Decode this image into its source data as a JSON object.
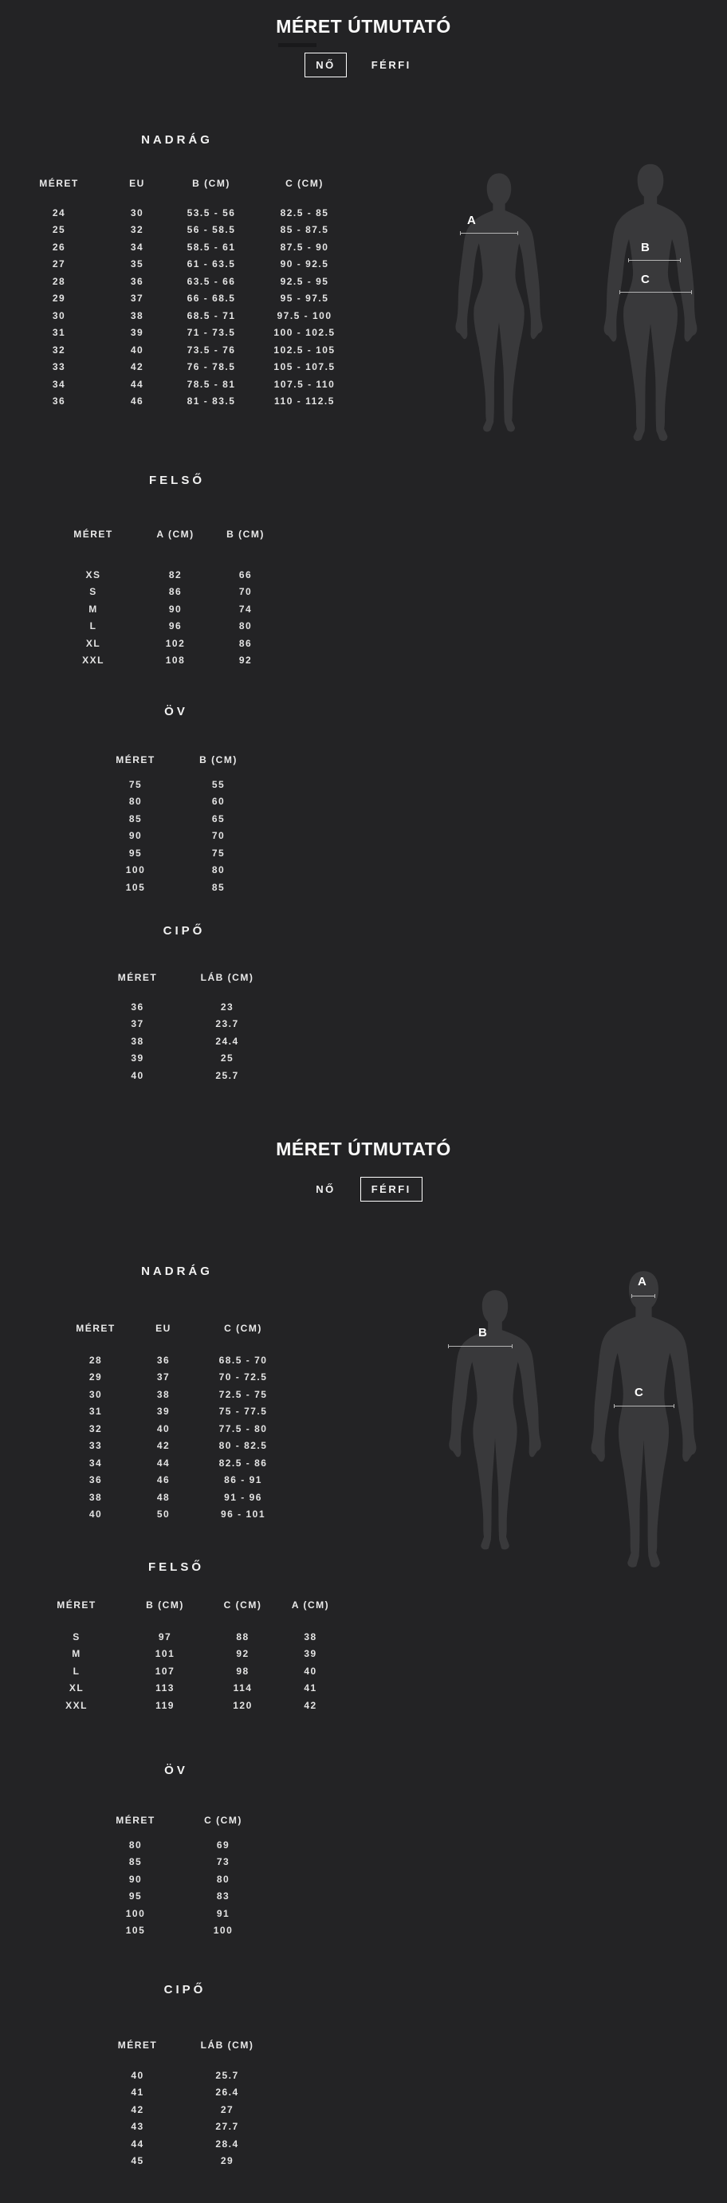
{
  "colors": {
    "background": "#232325",
    "silhouette": "#39393b",
    "text": "#efefef",
    "measure_line": "#b4b4b4",
    "active_tab_border": "#ffffff"
  },
  "sections": [
    {
      "id": "women",
      "title": "MÉRET ÚTMUTATÓ",
      "tabs": [
        {
          "label": "NŐ",
          "active": true
        },
        {
          "label": "FÉRFI",
          "active": false
        }
      ],
      "tables": [
        {
          "title": "NADRÁG",
          "headers": [
            "MÉRET",
            "EU",
            "B (CM)",
            "C (CM)"
          ],
          "rows": [
            [
              "24",
              "30",
              "53.5 - 56",
              "82.5 - 85"
            ],
            [
              "25",
              "32",
              "56 - 58.5",
              "85 - 87.5"
            ],
            [
              "26",
              "34",
              "58.5 - 61",
              "87.5 - 90"
            ],
            [
              "27",
              "35",
              "61 - 63.5",
              "90 - 92.5"
            ],
            [
              "28",
              "36",
              "63.5 - 66",
              "92.5 - 95"
            ],
            [
              "29",
              "37",
              "66 - 68.5",
              "95 - 97.5"
            ],
            [
              "30",
              "38",
              "68.5 - 71",
              "97.5 - 100"
            ],
            [
              "31",
              "39",
              "71 - 73.5",
              "100 - 102.5"
            ],
            [
              "32",
              "40",
              "73.5 - 76",
              "102.5 - 105"
            ],
            [
              "33",
              "42",
              "76 - 78.5",
              "105 - 107.5"
            ],
            [
              "34",
              "44",
              "78.5 - 81",
              "107.5 - 110"
            ],
            [
              "36",
              "46",
              "81 - 83.5",
              "110 - 112.5"
            ]
          ]
        },
        {
          "title": "FELSŐ",
          "headers": [
            "MÉRET",
            "A (CM)",
            "B (CM)"
          ],
          "rows": [
            [
              "XS",
              "82",
              "66"
            ],
            [
              "S",
              "86",
              "70"
            ],
            [
              "M",
              "90",
              "74"
            ],
            [
              "L",
              "96",
              "80"
            ],
            [
              "XL",
              "102",
              "86"
            ],
            [
              "XXL",
              "108",
              "92"
            ]
          ]
        },
        {
          "title": "ÖV",
          "headers": [
            "MÉRET",
            "B (CM)"
          ],
          "rows": [
            [
              "75",
              "55"
            ],
            [
              "80",
              "60"
            ],
            [
              "85",
              "65"
            ],
            [
              "90",
              "70"
            ],
            [
              "95",
              "75"
            ],
            [
              "100",
              "80"
            ],
            [
              "105",
              "85"
            ]
          ]
        },
        {
          "title": "CIPŐ",
          "headers": [
            "MÉRET",
            "LÁB (CM)"
          ],
          "rows": [
            [
              "36",
              "23"
            ],
            [
              "37",
              "23.7"
            ],
            [
              "38",
              "24.4"
            ],
            [
              "39",
              "25"
            ],
            [
              "40",
              "25.7"
            ]
          ]
        }
      ],
      "diagram": {
        "labels": {
          "a": "A",
          "b": "B",
          "c": "C"
        }
      }
    },
    {
      "id": "men",
      "title": "MÉRET ÚTMUTATÓ",
      "tabs": [
        {
          "label": "NŐ",
          "active": false
        },
        {
          "label": "FÉRFI",
          "active": true
        }
      ],
      "tables": [
        {
          "title": "NADRÁG",
          "headers": [
            "MÉRET",
            "EU",
            "C (CM)"
          ],
          "rows": [
            [
              "28",
              "36",
              "68.5 - 70"
            ],
            [
              "29",
              "37",
              "70 - 72.5"
            ],
            [
              "30",
              "38",
              "72.5 - 75"
            ],
            [
              "31",
              "39",
              "75 - 77.5"
            ],
            [
              "32",
              "40",
              "77.5 - 80"
            ],
            [
              "33",
              "42",
              "80 - 82.5"
            ],
            [
              "34",
              "44",
              "82.5 - 86"
            ],
            [
              "36",
              "46",
              "86 - 91"
            ],
            [
              "38",
              "48",
              "91 - 96"
            ],
            [
              "40",
              "50",
              "96 - 101"
            ]
          ]
        },
        {
          "title": "FELSŐ",
          "headers": [
            "MÉRET",
            "B (CM)",
            "C (CM)",
            "A (CM)"
          ],
          "rows": [
            [
              "S",
              "97",
              "88",
              "38"
            ],
            [
              "M",
              "101",
              "92",
              "39"
            ],
            [
              "L",
              "107",
              "98",
              "40"
            ],
            [
              "XL",
              "113",
              "114",
              "41"
            ],
            [
              "XXL",
              "119",
              "120",
              "42"
            ]
          ]
        },
        {
          "title": "ÖV",
          "headers": [
            "MÉRET",
            "C (CM)"
          ],
          "rows": [
            [
              "80",
              "69"
            ],
            [
              "85",
              "73"
            ],
            [
              "90",
              "80"
            ],
            [
              "95",
              "83"
            ],
            [
              "100",
              "91"
            ],
            [
              "105",
              "100"
            ]
          ]
        },
        {
          "title": "CIPŐ",
          "headers": [
            "MÉRET",
            "LÁB (CM)"
          ],
          "rows": [
            [
              "40",
              "25.7"
            ],
            [
              "41",
              "26.4"
            ],
            [
              "42",
              "27"
            ],
            [
              "43",
              "27.7"
            ],
            [
              "44",
              "28.4"
            ],
            [
              "45",
              "29"
            ]
          ]
        }
      ],
      "diagram": {
        "labels": {
          "a": "A",
          "b": "B",
          "c": "C"
        }
      }
    }
  ]
}
